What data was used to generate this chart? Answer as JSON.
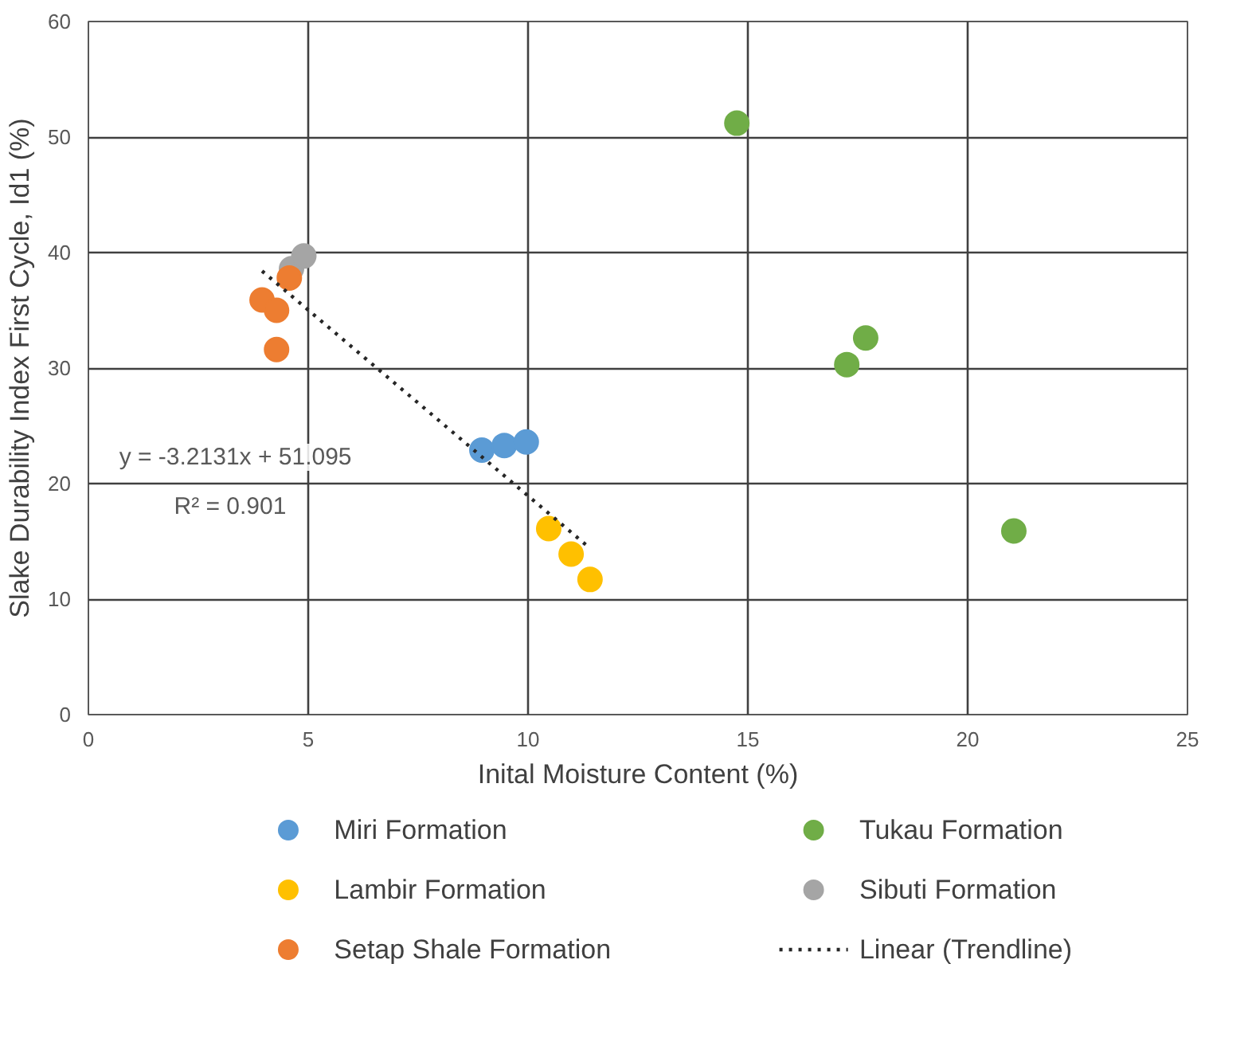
{
  "chart_data": {
    "type": "scatter",
    "xlabel": "Inital Moisture Content (%)",
    "ylabel": "Slake Durability Index First Cycle, Id1 (%)",
    "xlim": [
      0,
      25
    ],
    "xticks": [
      0,
      5,
      10,
      15,
      20,
      25
    ],
    "ylim": [
      0,
      60
    ],
    "yticks": [
      0,
      10,
      20,
      30,
      40,
      50,
      60
    ],
    "grid": true,
    "legend": "bottom",
    "marker": "circle",
    "annotations": [
      "y = -3.2131x + 51.095",
      "R² = 0.901"
    ],
    "series": [
      {
        "name": "Miri Formation",
        "color": "#5b9bd5",
        "x": [
          8.95,
          9.46,
          9.96
        ],
        "values": [
          22.9,
          23.3,
          23.6
        ]
      },
      {
        "name": "Tukau Formation",
        "color": "#70ad47",
        "x": [
          14.75,
          17.25,
          17.68,
          21.05
        ],
        "values": [
          51.2,
          30.3,
          32.6,
          15.9
        ]
      },
      {
        "name": "Lambir Formation",
        "color": "#ffc000",
        "x": [
          10.47,
          10.98,
          11.41
        ],
        "values": [
          16.1,
          13.9,
          11.7
        ]
      },
      {
        "name": "Sibuti Formation",
        "color": "#a5a5a5",
        "x": [
          4.62,
          4.9
        ],
        "values": [
          38.6,
          39.7
        ]
      },
      {
        "name": "Setap Shale Formation",
        "color": "#ed7d31",
        "x": [
          3.95,
          4.28,
          4.28,
          4.57
        ],
        "values": [
          35.9,
          35.0,
          31.6,
          37.8
        ]
      },
      {
        "name": "Linear (Trendline)",
        "type": "line",
        "color": "#262626",
        "line_style": "dotted",
        "marker": "none",
        "x": [
          3.95,
          11.41
        ],
        "values": [
          38.4,
          14.4
        ]
      }
    ]
  }
}
